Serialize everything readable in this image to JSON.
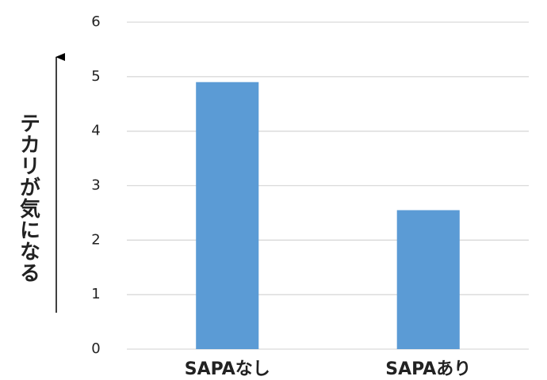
{
  "chart_data": {
    "type": "bar",
    "y_label": "テカリが気になる",
    "categories": [
      "SAPAなし",
      "SAPAあり"
    ],
    "values": [
      4.9,
      2.55
    ],
    "color": "#5b9bd5",
    "ylim": [
      0,
      6
    ],
    "yticks": [
      0,
      1,
      2,
      3,
      4,
      5,
      6
    ],
    "grid": true
  }
}
